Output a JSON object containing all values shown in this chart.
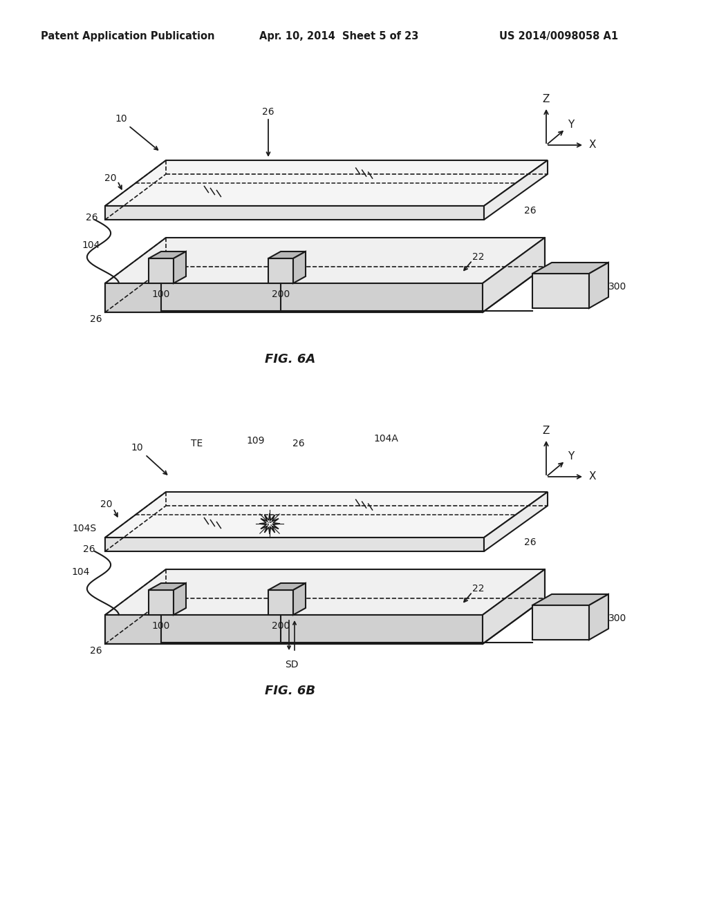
{
  "bg_color": "#ffffff",
  "line_color": "#1a1a1a",
  "header_left": "Patent Application Publication",
  "header_mid": "Apr. 10, 2014  Sheet 5 of 23",
  "header_right": "US 2014/0098058 A1",
  "fig6a_label": "FIG. 6A",
  "fig6b_label": "FIG. 6B"
}
